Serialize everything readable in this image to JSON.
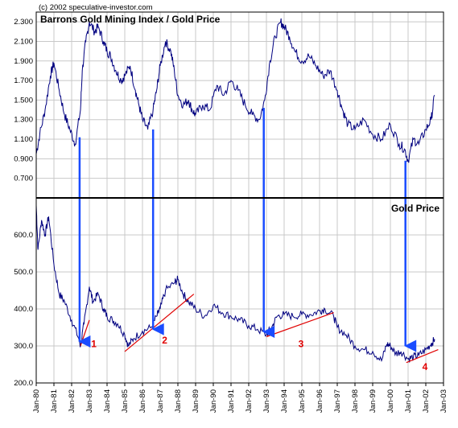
{
  "copyright": "(c) 2002 speculative-investor.com",
  "colors": {
    "series": "#000080",
    "arrow": "#1a4cff",
    "trend": "#e00000",
    "divider": "#000000",
    "grid": "#c8c8c8"
  },
  "chart_data": [
    {
      "type": "line",
      "title": "Barrons Gold Mining Index / Gold Price",
      "ylim": [
        0.5,
        2.4
      ],
      "yticks": [
        "0.700",
        "0.900",
        "1.100",
        "1.300",
        "1.500",
        "1.700",
        "1.900",
        "2.100",
        "2.300"
      ],
      "ytick_values": [
        0.7,
        0.9,
        1.1,
        1.3,
        1.5,
        1.7,
        1.9,
        2.1,
        2.3
      ],
      "x": [
        1980.0,
        1980.2,
        1980.5,
        1980.8,
        1981.0,
        1981.3,
        1981.6,
        1981.9,
        1982.2,
        1982.5,
        1982.6,
        1982.8,
        1983.0,
        1983.3,
        1983.5,
        1983.8,
        1984.0,
        1984.2,
        1984.5,
        1984.8,
        1985.0,
        1985.3,
        1985.6,
        1985.8,
        1986.0,
        1986.3,
        1986.6,
        1986.8,
        1987.0,
        1987.3,
        1987.6,
        1987.8,
        1988.0,
        1988.3,
        1988.6,
        1988.8,
        1989.0,
        1989.4,
        1989.8,
        1990.2,
        1990.6,
        1991.0,
        1991.4,
        1991.8,
        1992.2,
        1992.6,
        1992.9,
        1993.2,
        1993.5,
        1993.8,
        1994.0,
        1994.3,
        1994.6,
        1995.0,
        1995.4,
        1995.8,
        1996.2,
        1996.6,
        1997.0,
        1997.3,
        1997.6,
        1998.0,
        1998.5,
        1999.0,
        1999.5,
        2000.0,
        2000.5,
        2000.8,
        2001.0,
        2001.3,
        2001.6,
        2002.0,
        2002.3,
        2002.5
      ],
      "series": [
        {
          "values": [
            0.95,
            1.15,
            1.4,
            1.75,
            1.88,
            1.6,
            1.35,
            1.2,
            1.05,
            1.4,
            1.8,
            2.1,
            2.3,
            2.2,
            2.25,
            2.1,
            2.0,
            1.95,
            1.8,
            1.7,
            1.75,
            1.85,
            1.6,
            1.45,
            1.3,
            1.2,
            1.4,
            1.6,
            1.85,
            2.1,
            2.0,
            1.8,
            1.55,
            1.45,
            1.5,
            1.4,
            1.35,
            1.45,
            1.4,
            1.65,
            1.55,
            1.7,
            1.6,
            1.45,
            1.35,
            1.3,
            1.5,
            1.9,
            2.15,
            2.3,
            2.25,
            2.15,
            2.0,
            1.9,
            1.95,
            1.85,
            1.75,
            1.8,
            1.6,
            1.4,
            1.25,
            1.2,
            1.3,
            1.15,
            1.1,
            1.25,
            1.05,
            1.0,
            0.88,
            1.1,
            1.05,
            1.2,
            1.3,
            1.55
          ]
        }
      ]
    },
    {
      "type": "line",
      "title": "Gold Price",
      "ylim": [
        200,
        700
      ],
      "yticks": [
        "200.0",
        "300.0",
        "400.0",
        "500.0",
        "600.0"
      ],
      "ytick_values": [
        200,
        300,
        400,
        500,
        600
      ],
      "xticks": [
        "Jan-80",
        "Jan-81",
        "Jan-82",
        "Jan-83",
        "Jan-84",
        "Jan-85",
        "Jan-86",
        "Jan-87",
        "Jan-88",
        "Jan-89",
        "Jan-90",
        "Jan-91",
        "Jan-92",
        "Jan-93",
        "Jan-94",
        "Jan-95",
        "Jan-96",
        "Jan-97",
        "Jan-98",
        "Jan-99",
        "Jan-00",
        "Jan-01",
        "Jan-02",
        "Jan-03"
      ],
      "x": [
        1980.0,
        1980.1,
        1980.3,
        1980.5,
        1980.7,
        1981.0,
        1981.3,
        1981.6,
        1982.0,
        1982.4,
        1982.5,
        1982.7,
        1983.0,
        1983.2,
        1983.5,
        1983.8,
        1984.0,
        1984.3,
        1984.6,
        1985.0,
        1985.2,
        1985.5,
        1986.0,
        1986.5,
        1986.8,
        1987.0,
        1987.3,
        1987.8,
        1988.0,
        1988.3,
        1988.6,
        1989.0,
        1989.5,
        1990.0,
        1990.5,
        1991.0,
        1991.5,
        1992.0,
        1992.5,
        1993.0,
        1993.3,
        1993.6,
        1994.0,
        1994.5,
        1995.0,
        1995.5,
        1996.0,
        1996.3,
        1996.8,
        1997.0,
        1997.5,
        1998.0,
        1998.5,
        1999.0,
        1999.5,
        1999.8,
        2000.0,
        2000.3,
        2000.6,
        2001.0,
        2001.3,
        2001.6,
        2002.0,
        2002.3,
        2002.5
      ],
      "series": [
        {
          "values": [
            680,
            560,
            640,
            600,
            650,
            520,
            440,
            420,
            370,
            320,
            300,
            360,
            460,
            420,
            440,
            400,
            380,
            370,
            360,
            330,
            300,
            320,
            340,
            350,
            380,
            400,
            450,
            470,
            480,
            440,
            420,
            400,
            380,
            410,
            390,
            380,
            370,
            355,
            345,
            330,
            350,
            380,
            385,
            380,
            385,
            385,
            395,
            400,
            380,
            350,
            330,
            300,
            290,
            285,
            260,
            305,
            300,
            280,
            285,
            265,
            270,
            275,
            290,
            305,
            318
          ]
        }
      ],
      "annotations": [
        "1",
        "2",
        "3",
        "4"
      ]
    }
  ]
}
